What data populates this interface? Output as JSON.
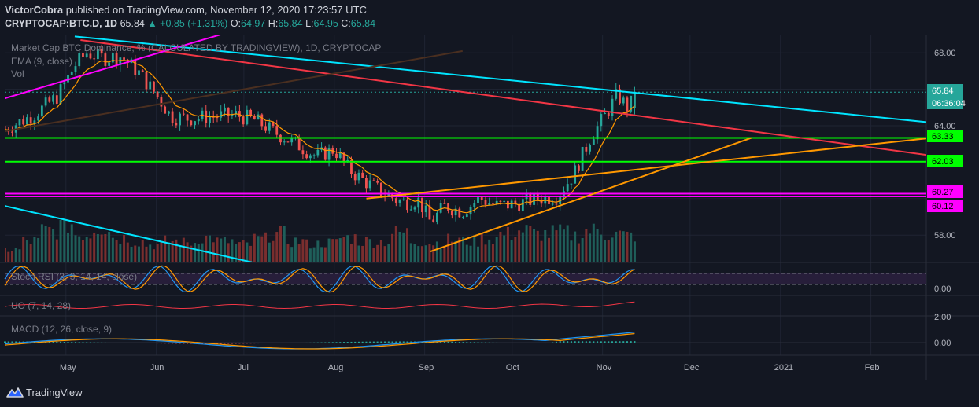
{
  "header": {
    "author": "VictorCobra",
    "published_text": " published on TradingView.com, November 12, 2020 17:23:57 UTC",
    "symbol": "CRYPTOCAP:BTC.D, 1D",
    "last": "65.84",
    "change": "▲ +0.85 (+1.31%)",
    "o_label": "O:",
    "o": "64.97",
    "h_label": "H:",
    "h": "65.84",
    "l_label": "L:",
    "l": "64.95",
    "c_label": "C:",
    "c": "65.84"
  },
  "legend": {
    "main_title": "Market Cap BTC Dominance, % (CALCULATED BY TRADINGVIEW), 1D, CRYPTOCAP",
    "ema": "EMA (9, close)",
    "vol": "Vol"
  },
  "panes": {
    "stoch_rsi": "Stoch RSI (3, 3, 14, 14, close)",
    "uo": "UO (7, 14, 28)",
    "macd": "MACD (12, 26, close, 9)"
  },
  "price_axis": {
    "ticks": [
      "68.00",
      "64.00",
      "58.00"
    ],
    "stoch_tick": "0.00",
    "uo_tick": "",
    "macd_ticks": [
      "2.00",
      "0.00"
    ]
  },
  "price_badges": [
    {
      "text": "65.84",
      "color": "#26a69a"
    },
    {
      "text": "06:36:04",
      "color": "#26a69a"
    },
    {
      "text": "63.33",
      "color": "#00ff00"
    },
    {
      "text": "62.03",
      "color": "#00ff00"
    },
    {
      "text": "60.27",
      "color": "#ff00ff"
    },
    {
      "text": "60.12",
      "color": "#ff00ff"
    }
  ],
  "time_axis": {
    "labels": [
      "May",
      "Jun",
      "Jul",
      "Aug",
      "Sep",
      "Oct",
      "Nov",
      "Dec",
      "2021",
      "Feb"
    ]
  },
  "footer": {
    "brand": "TradingView",
    "logo_icon": "tradingview-logo-icon"
  },
  "colors": {
    "background": "#131722",
    "bull": "#26a69a",
    "bear": "#ef5350",
    "ema": "#ff9800",
    "cyan_line": "#00e5ff",
    "red_line": "#f23645",
    "magenta": "#ff00ff",
    "green_level": "#00ff00",
    "orange_trend": "#ff9800"
  },
  "chart_data": {
    "type": "line",
    "title": "Market Cap BTC Dominance, % (CALCULATED BY TRADINGVIEW), 1D, CRYPTOCAP",
    "ylabel": "",
    "ylim": [
      56.5,
      69
    ],
    "x_range": [
      "2020-04-10",
      "2021-02-20"
    ],
    "series": [
      {
        "name": "",
        "type": "close",
        "points": [
          [
            "2020-04-10",
            63.8
          ],
          [
            "2020-04-20",
            64.6
          ],
          [
            "2020-04-28",
            65.6
          ],
          [
            "2020-05-04",
            67.3
          ],
          [
            "2020-05-08",
            68.0
          ],
          [
            "2020-05-14",
            67.7
          ],
          [
            "2020-05-20",
            67.8
          ],
          [
            "2020-05-26",
            66.9
          ],
          [
            "2020-06-01",
            65.7
          ],
          [
            "2020-06-06",
            64.5
          ],
          [
            "2020-06-12",
            64.4
          ],
          [
            "2020-06-20",
            64.5
          ],
          [
            "2020-06-28",
            64.6
          ],
          [
            "2020-07-05",
            64.3
          ],
          [
            "2020-07-12",
            63.6
          ],
          [
            "2020-07-20",
            62.9
          ],
          [
            "2020-07-26",
            62.3
          ],
          [
            "2020-08-01",
            62.7
          ],
          [
            "2020-08-06",
            61.6
          ],
          [
            "2020-08-12",
            60.9
          ],
          [
            "2020-08-18",
            60.3
          ],
          [
            "2020-08-24",
            59.8
          ],
          [
            "2020-08-30",
            59.9
          ],
          [
            "2020-09-03",
            58.7
          ],
          [
            "2020-09-08",
            59.6
          ],
          [
            "2020-09-14",
            59.3
          ],
          [
            "2020-09-20",
            60.0
          ],
          [
            "2020-09-26",
            59.6
          ],
          [
            "2020-10-02",
            59.7
          ],
          [
            "2020-10-10",
            60.0
          ],
          [
            "2020-10-16",
            60.1
          ],
          [
            "2020-10-22",
            61.3
          ],
          [
            "2020-10-28",
            63.4
          ],
          [
            "2020-11-02",
            64.6
          ],
          [
            "2020-11-06",
            65.7
          ],
          [
            "2020-11-10",
            64.9
          ],
          [
            "2020-11-12",
            65.84
          ]
        ]
      },
      {
        "name": "",
        "type": "volume",
        "note": "relative heights",
        "values": [
          0.18,
          0.3,
          0.45,
          0.55,
          0.4,
          0.5,
          0.35,
          0.3,
          0.25,
          0.3,
          0.28,
          0.35,
          0.3,
          0.25,
          0.33,
          0.4,
          0.3,
          0.26,
          0.28,
          0.35,
          0.3,
          0.3,
          0.42,
          0.3,
          0.28,
          0.32,
          0.3,
          0.34,
          0.4,
          0.45,
          0.4,
          0.42,
          0.38,
          0.45,
          0.4,
          0.38
        ]
      }
    ],
    "horizontal_levels": [
      {
        "value": 65.84,
        "style": "dotted",
        "color": "#26a69a"
      },
      {
        "value": 63.33,
        "color": "#00ff00"
      },
      {
        "value": 62.03,
        "color": "#00ff00"
      },
      {
        "value": 60.27,
        "color": "#ff00ff"
      },
      {
        "value": 60.12,
        "color": "#ff00ff"
      }
    ],
    "trend_lines": [
      {
        "color": "#00e5ff",
        "from": [
          "2020-05-04",
          68.9
        ],
        "to": [
          "2021-02-20",
          64.2
        ]
      },
      {
        "color": "#f23645",
        "from": [
          "2020-05-06",
          68.7
        ],
        "to": [
          "2021-02-20",
          62.4
        ]
      },
      {
        "color": "#ff9800",
        "from": [
          "2020-08-12",
          60.0
        ],
        "to": [
          "2021-02-20",
          63.3
        ]
      },
      {
        "color": "#ff9800",
        "from": [
          "2020-09-03",
          57.1
        ],
        "to": [
          "2020-12-22",
          63.33
        ]
      },
      {
        "color": "#ff00ff",
        "from": [
          "2020-04-10",
          65.5
        ],
        "to": [
          "2020-06-23",
          69.0
        ]
      },
      {
        "color": "#4a2f20",
        "from": [
          "2020-04-10",
          63.7
        ],
        "to": [
          "2020-09-14",
          68.1
        ]
      },
      {
        "color": "#00e5ff",
        "from": [
          "2020-04-10",
          59.6
        ],
        "to": [
          "2020-07-04",
          56.5
        ]
      }
    ],
    "indicators": {
      "stoch_rsi": {
        "ticks": [
          "0.00"
        ],
        "bands": [
          20,
          80
        ]
      },
      "uo": {
        "params": "7, 14, 28"
      },
      "macd": {
        "ticks": [
          "2.00",
          "0.00"
        ],
        "last_macd": 1.2
      }
    },
    "legend": "top-left",
    "grid": true
  }
}
